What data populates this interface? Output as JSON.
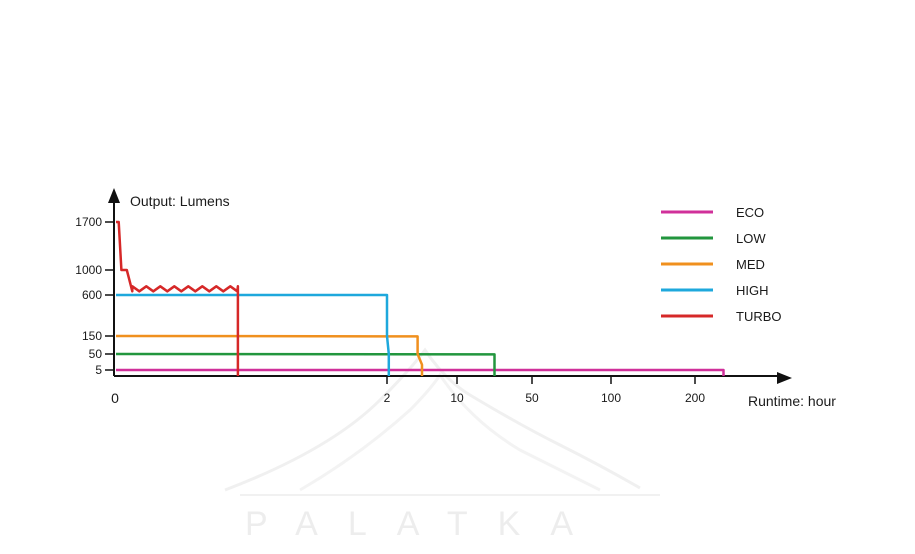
{
  "chart_data": {
    "type": "line",
    "ylabel": "Output: Lumens",
    "xlabel": "Runtime: hour",
    "y_ticks": [
      "1700",
      "1000",
      "600",
      "150",
      "50",
      "5"
    ],
    "x_ticks": [
      "0",
      "2",
      "10",
      "50",
      "100",
      "200"
    ],
    "legend_position": "top-right",
    "grid": false,
    "series": [
      {
        "name": "ECO",
        "color": "#d0309a",
        "points": [
          [
            0,
            5
          ],
          [
            230,
            5
          ],
          [
            230,
            0
          ]
        ]
      },
      {
        "name": "LOW",
        "color": "#22963e",
        "points": [
          [
            0,
            50
          ],
          [
            30,
            49
          ],
          [
            30,
            0
          ]
        ]
      },
      {
        "name": "MED",
        "color": "#f0901e",
        "points": [
          [
            0,
            150
          ],
          [
            5.5,
            148
          ],
          [
            5.5,
            50
          ],
          [
            6,
            20
          ],
          [
            6,
            0
          ]
        ]
      },
      {
        "name": "HIGH",
        "color": "#1ea8dc",
        "points": [
          [
            0,
            600
          ],
          [
            2,
            600
          ],
          [
            2,
            150
          ],
          [
            2.2,
            50
          ],
          [
            2.2,
            0
          ]
        ]
      },
      {
        "name": "TURBO",
        "color": "#d62828",
        "points": [
          [
            0,
            1700
          ],
          [
            0.02,
            1700
          ],
          [
            0.04,
            1000
          ],
          [
            0.08,
            1000
          ],
          [
            0.12,
            700
          ],
          [
            0.9,
            700
          ],
          [
            0.9,
            0
          ]
        ]
      }
    ]
  },
  "watermark": "PALATKA"
}
